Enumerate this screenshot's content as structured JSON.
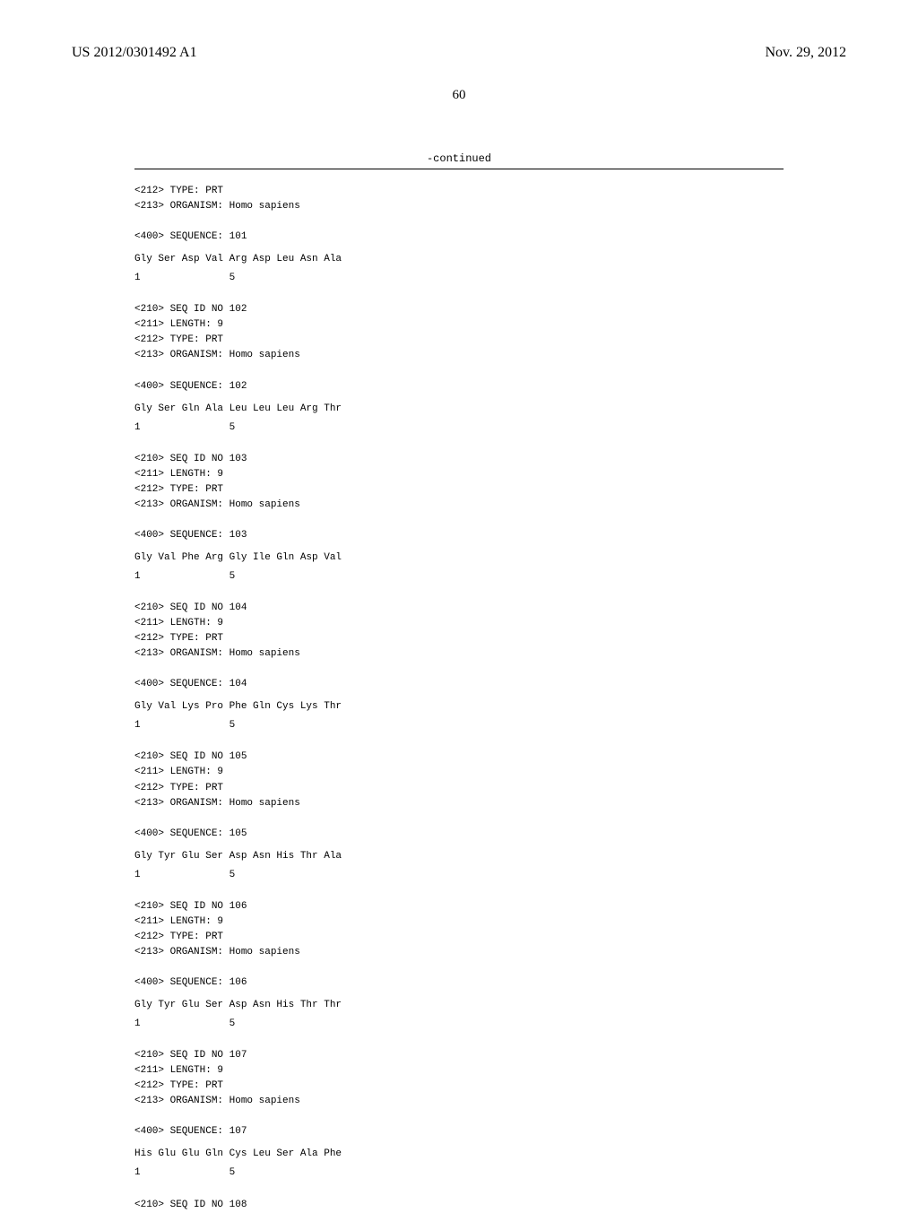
{
  "header": {
    "publication_number": "US 2012/0301492 A1",
    "publication_date": "Nov. 29, 2012"
  },
  "page_number": "60",
  "continued_label": "-continued",
  "sequences": [
    {
      "header_lines": [
        "<212> TYPE: PRT",
        "<213> ORGANISM: Homo sapiens"
      ],
      "sequence_label": "<400> SEQUENCE: 101",
      "peptide": "Gly Ser Asp Val Arg Asp Leu Asn Ala",
      "position_line": "1               5"
    },
    {
      "header_lines": [
        "<210> SEQ ID NO 102",
        "<211> LENGTH: 9",
        "<212> TYPE: PRT",
        "<213> ORGANISM: Homo sapiens"
      ],
      "sequence_label": "<400> SEQUENCE: 102",
      "peptide": "Gly Ser Gln Ala Leu Leu Leu Arg Thr",
      "position_line": "1               5"
    },
    {
      "header_lines": [
        "<210> SEQ ID NO 103",
        "<211> LENGTH: 9",
        "<212> TYPE: PRT",
        "<213> ORGANISM: Homo sapiens"
      ],
      "sequence_label": "<400> SEQUENCE: 103",
      "peptide": "Gly Val Phe Arg Gly Ile Gln Asp Val",
      "position_line": "1               5"
    },
    {
      "header_lines": [
        "<210> SEQ ID NO 104",
        "<211> LENGTH: 9",
        "<212> TYPE: PRT",
        "<213> ORGANISM: Homo sapiens"
      ],
      "sequence_label": "<400> SEQUENCE: 104",
      "peptide": "Gly Val Lys Pro Phe Gln Cys Lys Thr",
      "position_line": "1               5"
    },
    {
      "header_lines": [
        "<210> SEQ ID NO 105",
        "<211> LENGTH: 9",
        "<212> TYPE: PRT",
        "<213> ORGANISM: Homo sapiens"
      ],
      "sequence_label": "<400> SEQUENCE: 105",
      "peptide": "Gly Tyr Glu Ser Asp Asn His Thr Ala",
      "position_line": "1               5"
    },
    {
      "header_lines": [
        "<210> SEQ ID NO 106",
        "<211> LENGTH: 9",
        "<212> TYPE: PRT",
        "<213> ORGANISM: Homo sapiens"
      ],
      "sequence_label": "<400> SEQUENCE: 106",
      "peptide": "Gly Tyr Glu Ser Asp Asn His Thr Thr",
      "position_line": "1               5"
    },
    {
      "header_lines": [
        "<210> SEQ ID NO 107",
        "<211> LENGTH: 9",
        "<212> TYPE: PRT",
        "<213> ORGANISM: Homo sapiens"
      ],
      "sequence_label": "<400> SEQUENCE: 107",
      "peptide": "His Glu Glu Gln Cys Leu Ser Ala Phe",
      "position_line": "1               5"
    },
    {
      "header_lines": [
        "<210> SEQ ID NO 108"
      ],
      "sequence_label": "",
      "peptide": "",
      "position_line": ""
    }
  ]
}
